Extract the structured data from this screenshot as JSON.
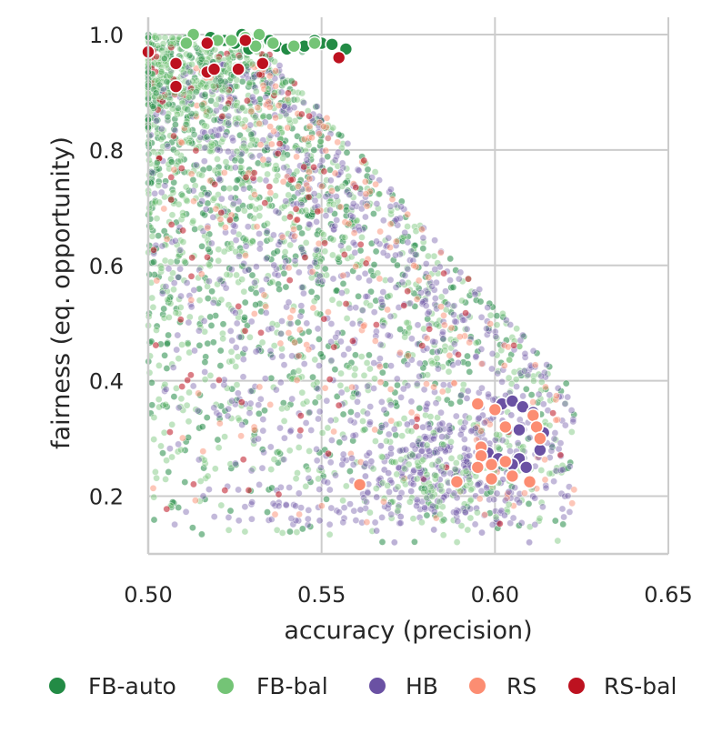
{
  "chart_data": {
    "type": "scatter",
    "title": "",
    "xlabel": "accuracy (precision)",
    "ylabel": "fairness (eq. opportunity)",
    "xlim": [
      0.5,
      0.65
    ],
    "ylim": [
      0.1,
      1.03
    ],
    "xticks": [
      "0.50",
      "0.55",
      "0.60",
      "0.65"
    ],
    "yticks": [
      "0.2",
      "0.4",
      "0.6",
      "0.8",
      "1.0"
    ],
    "xtick_values": [
      0.5,
      0.55,
      0.6,
      0.65
    ],
    "ytick_values": [
      0.2,
      0.4,
      0.6,
      0.8,
      1.0
    ],
    "grid": true,
    "legend_position": "bottom",
    "series": [
      {
        "name": "FB-auto",
        "color": "#238b45",
        "values": [
          [
            0.527,
            1.0
          ],
          [
            0.535,
            0.99
          ],
          [
            0.53,
            0.985
          ],
          [
            0.545,
            0.98
          ],
          [
            0.55,
            0.985
          ],
          [
            0.553,
            0.983
          ],
          [
            0.557,
            0.975
          ],
          [
            0.518,
            0.995
          ],
          [
            0.522,
            0.99
          ],
          [
            0.529,
            0.975
          ],
          [
            0.537,
            0.98
          ],
          [
            0.54,
            0.975
          ],
          [
            0.548,
            0.99
          ],
          [
            0.525,
            0.985
          ]
        ]
      },
      {
        "name": "FB-bal",
        "color": "#74c476",
        "values": [
          [
            0.513,
            1.0
          ],
          [
            0.52,
            0.99
          ],
          [
            0.524,
            0.99
          ],
          [
            0.532,
            1.0
          ],
          [
            0.511,
            0.985
          ],
          [
            0.528,
            0.995
          ],
          [
            0.536,
            0.985
          ],
          [
            0.542,
            0.98
          ],
          [
            0.548,
            0.985
          ],
          [
            0.531,
            0.98
          ]
        ]
      },
      {
        "name": "HB",
        "color": "#6a51a3",
        "values": [
          [
            0.602,
            0.36
          ],
          [
            0.605,
            0.365
          ],
          [
            0.608,
            0.355
          ],
          [
            0.611,
            0.345
          ],
          [
            0.614,
            0.31
          ],
          [
            0.613,
            0.28
          ],
          [
            0.598,
            0.275
          ],
          [
            0.601,
            0.265
          ],
          [
            0.603,
            0.26
          ],
          [
            0.607,
            0.265
          ],
          [
            0.609,
            0.25
          ],
          [
            0.605,
            0.255
          ],
          [
            0.607,
            0.315
          ]
        ]
      },
      {
        "name": "RS",
        "color": "#fc8d72",
        "values": [
          [
            0.595,
            0.36
          ],
          [
            0.6,
            0.35
          ],
          [
            0.611,
            0.34
          ],
          [
            0.612,
            0.32
          ],
          [
            0.613,
            0.3
          ],
          [
            0.603,
            0.32
          ],
          [
            0.596,
            0.285
          ],
          [
            0.596,
            0.27
          ],
          [
            0.599,
            0.255
          ],
          [
            0.595,
            0.25
          ],
          [
            0.605,
            0.235
          ],
          [
            0.599,
            0.23
          ],
          [
            0.589,
            0.225
          ],
          [
            0.61,
            0.225
          ],
          [
            0.561,
            0.22
          ],
          [
            0.603,
            0.26
          ]
        ]
      },
      {
        "name": "RS-bal",
        "color": "#bd1220",
        "values": [
          [
            0.5,
            0.97
          ],
          [
            0.508,
            0.95
          ],
          [
            0.508,
            0.91
          ],
          [
            0.517,
            0.935
          ],
          [
            0.519,
            0.94
          ],
          [
            0.517,
            0.985
          ],
          [
            0.526,
            0.94
          ],
          [
            0.528,
            0.99
          ],
          [
            0.533,
            0.95
          ],
          [
            0.555,
            0.96
          ]
        ]
      }
    ],
    "background_clouds": [
      {
        "series": "FB-auto",
        "count": 700,
        "alpha": 0.55
      },
      {
        "series": "FB-bal",
        "count": 900,
        "alpha": 0.45
      },
      {
        "series": "HB",
        "count": 900,
        "alpha": 0.4
      },
      {
        "series": "RS",
        "count": 220,
        "alpha": 0.5
      },
      {
        "series": "RS-bal",
        "count": 120,
        "alpha": 0.55
      }
    ]
  }
}
